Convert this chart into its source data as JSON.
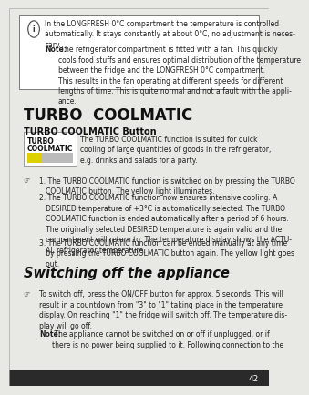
{
  "bg_color": "#e8e8e4",
  "page_bg": "#ffffff",
  "page_border_color": "#aaaaaa",
  "info_text1": "In the LONGFRESH 0°C compartment the temperature is controlled\nautomatically. It stays constantly at about 0°C, no adjustment is neces-\nsary.",
  "info_note_bold": "Note:",
  "info_note_text": " The refrigerator compartment is fitted with a fan. This quickly\ncools food stuffs and ensures optimal distribution of the temperature\nbetween the fridge and the LONGFRESH 0°C compartment.\nThis results in the fan operating at different speeds for different\nlengths of time. This is quite normal and not a fault with the appli-\nance.",
  "section1_title": "TURBO  COOLMATIC",
  "subsection1_title": "TURBO COOLMATIC Button",
  "button_label1": "TURBO",
  "button_label2": "COOLMATIC",
  "bar_yellow": "#ddd000",
  "bar_gray": "#bbbbbb",
  "button_desc": "The TURBO COOLMATIC function is suited for quick\ncooling of large quantities of goods in the refrigerator,\ne.g. drinks and salads for a party.",
  "step1": "1. The TURBO COOLMATIC function is switched on by pressing the TURBO\n   COOLMATIC button. The yellow light illuminates.",
  "step2": "2. The TURBO COOLMATIC function now ensures intensive cooling. A\n   DESIRED temperature of +3°C is automatically selected. The TURBO\n   COOLMATIC function is ended automatically after a period of 6 hours.\n   The originally selected DESIRED temperature is again valid and the\n   compartment will return to. The temperature display shows the ACTU-\n   AL refrigerator temperature.",
  "step3": "3. The TURBO COOLMATIC function can be ended manually at any time\n   by pressing the TURBO COOLMATIC button again. The yellow light goes\n   out.",
  "section2_title": "Switching off the appliance",
  "switch_text": "To switch off, press the ON/OFF button for approx. 5 seconds. This will\nresult in a countdown from \"3\" to \"1\" taking place in the temperature\ndisplay. On reaching \"1\" the fridge will switch off. The temperature dis-\nplay will go off.",
  "switch_note_bold": "Note:",
  "switch_note_text": " The appliance cannot be switched on or off if unplugged, or if\nthere is no power being supplied to it. Following connection to the",
  "page_num": "42",
  "font_body": 5.5,
  "font_title1": 12.0,
  "font_title2": 7.0,
  "font_sub": 6.5,
  "lh": 1.35
}
